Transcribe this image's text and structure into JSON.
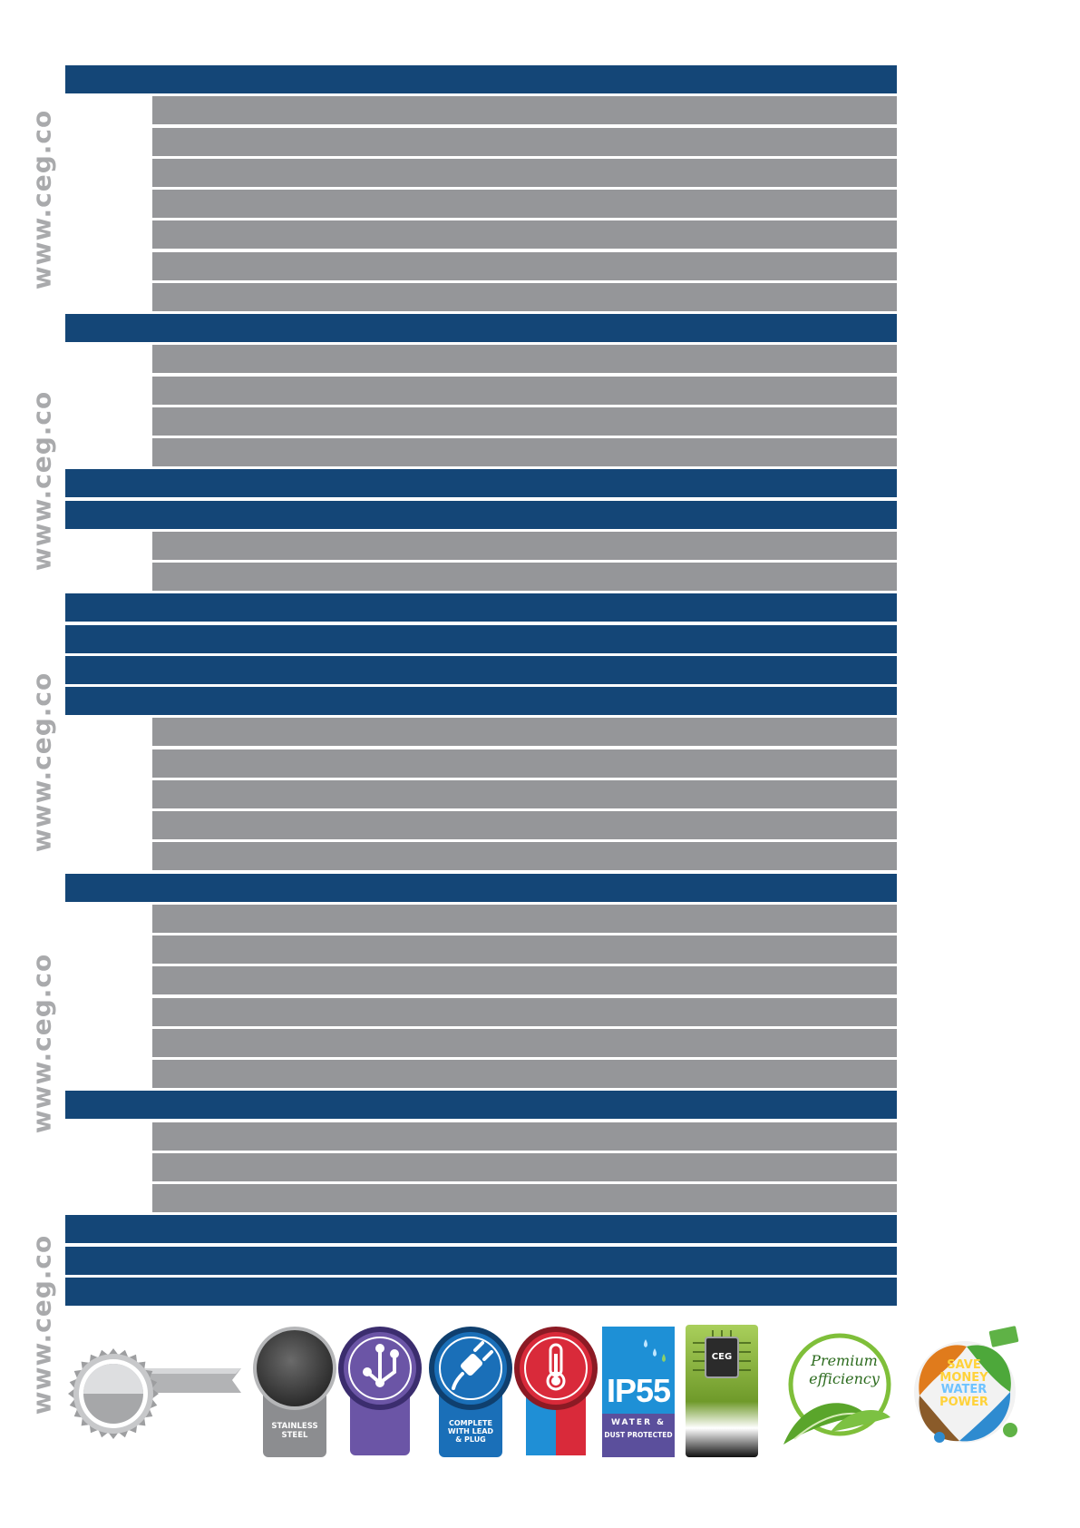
{
  "watermark": {
    "text": "www.ceg.co"
  },
  "table": {
    "rows": [
      "header",
      "spec",
      "spec",
      "spec",
      "spec",
      "spec",
      "spec",
      "spec",
      "header",
      "spec",
      "spec",
      "spec",
      "spec",
      "header",
      "header",
      "spec",
      "spec",
      "header",
      "header",
      "header",
      "header",
      "spec",
      "spec",
      "spec",
      "spec",
      "spec",
      "header",
      "spec",
      "spec",
      "spec",
      "spec",
      "spec",
      "spec",
      "header",
      "spec",
      "spec",
      "spec",
      "header",
      "header",
      "header"
    ]
  },
  "badges": {
    "stainless": {
      "icon": "stainless-steel-icon",
      "line1": "STAINLESS",
      "line2": "STEEL"
    },
    "connection": {
      "icon": "branch-connection-icon"
    },
    "plug": {
      "icon": "plug-icon",
      "line1": "COMPLETE",
      "line2": "WITH LEAD",
      "line3": "& PLUG"
    },
    "thermo": {
      "icon": "thermometer-icon"
    },
    "ip55": {
      "icon": "water-drops-icon",
      "title": "IP55",
      "line1": "WATER &",
      "line2": "DUST PROTECTED"
    },
    "chip": {
      "icon": "chip-icon",
      "label": "CEG"
    },
    "premium": {
      "icon": "leaf-icon",
      "line1": "Premium",
      "line2": "efficiency"
    },
    "save": {
      "icon": "save-money-icon",
      "line1": "SAVE",
      "line2": "MONEY",
      "line3": "WATER",
      "line4": "POWER"
    }
  },
  "colors": {
    "header": "#144677",
    "spec": "#959699",
    "watermark": "#a9aaac"
  }
}
